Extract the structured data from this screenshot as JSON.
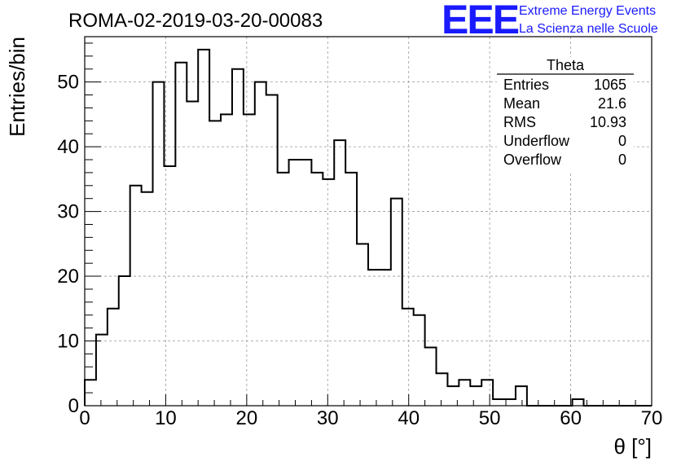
{
  "header": {
    "title": "ROMA-02-2019-03-20-00083",
    "logo_text": "EEE",
    "logo_line1": "Extreme Energy Events",
    "logo_line2": "La Scienza nelle Scuole"
  },
  "stats": {
    "name": "Theta",
    "rows": [
      {
        "label": "Entries",
        "value": "1065"
      },
      {
        "label": "Mean",
        "value": "21.6"
      },
      {
        "label": "RMS",
        "value": "10.93"
      },
      {
        "label": "Underflow",
        "value": "0"
      },
      {
        "label": "Overflow",
        "value": "0"
      }
    ]
  },
  "chart_data": {
    "type": "histogram",
    "title": "ROMA-02-2019-03-20-00083",
    "xlabel": "θ [°]",
    "ylabel": "Entries/bin",
    "xlim": [
      0,
      70
    ],
    "ylim": [
      0,
      57
    ],
    "bin_width": 1.4,
    "bin_start": 0,
    "values": [
      4,
      11,
      15,
      20,
      34,
      33,
      50,
      37,
      53,
      47,
      55,
      44,
      45,
      52,
      45,
      50,
      48,
      36,
      38,
      38,
      36,
      35,
      41,
      36,
      25,
      21,
      21,
      32,
      15,
      14,
      9,
      5,
      3,
      4,
      3,
      4,
      1,
      1,
      3,
      0,
      0,
      0,
      0,
      1,
      0,
      0,
      0,
      0,
      0,
      0
    ],
    "x_ticks": [
      0,
      10,
      20,
      30,
      40,
      50,
      60,
      70
    ],
    "y_ticks": [
      0,
      10,
      20,
      30,
      40,
      50
    ],
    "grid": true,
    "line_color": "#000000",
    "grid_color": "#999999"
  }
}
